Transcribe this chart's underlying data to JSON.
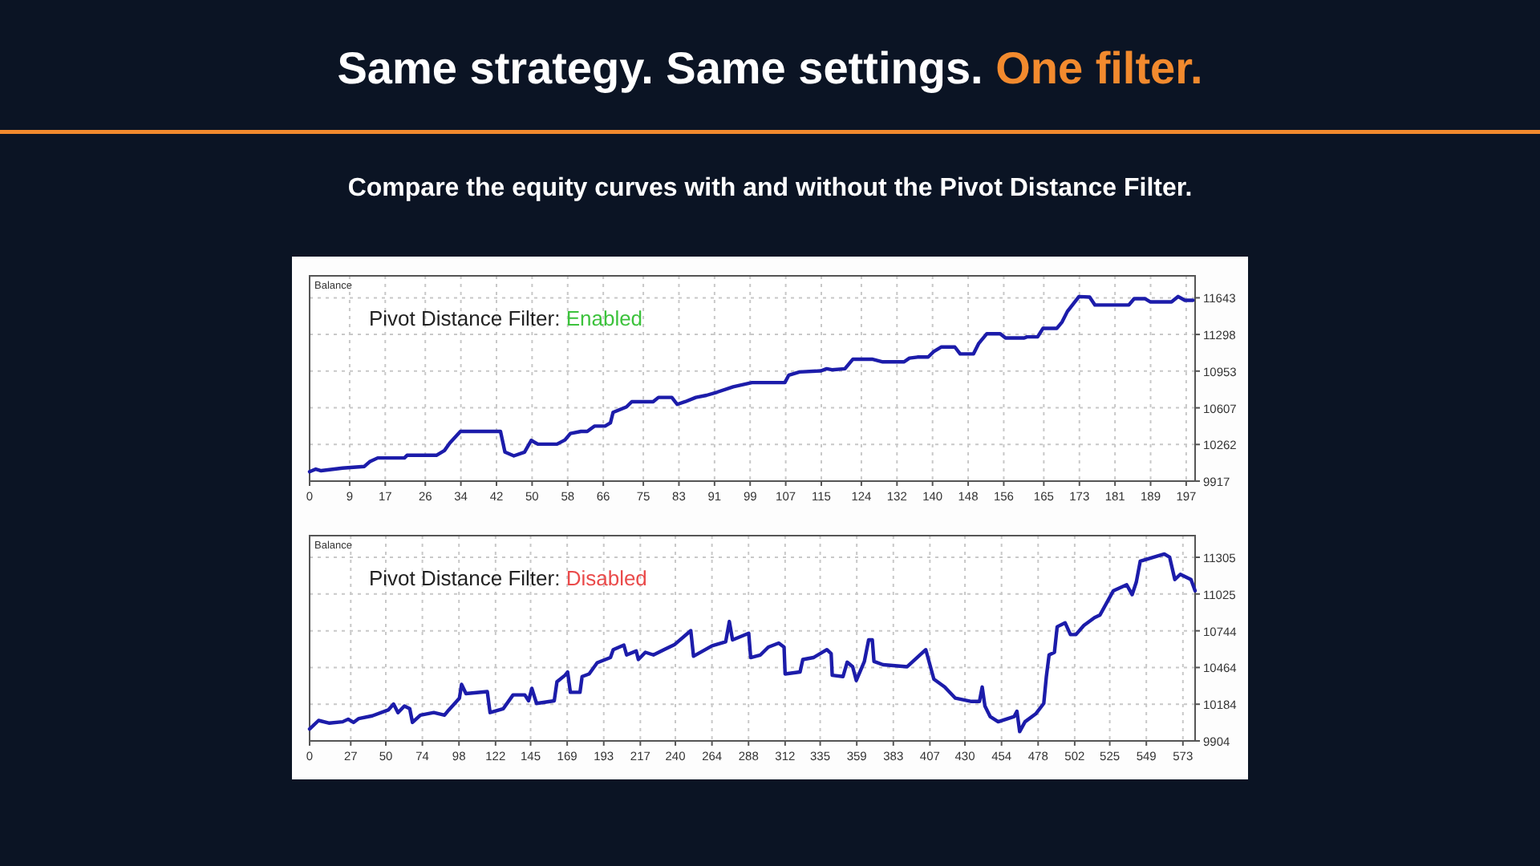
{
  "chart_data": [
    {
      "type": "line",
      "title": "Same strategy. Same settings. One filter.",
      "subtitle": "Compare the equity curves with and without the Pivot Distance Filter.",
      "ylabel": "Balance",
      "annotations": [
        "Pivot Distance Filter: Enabled"
      ],
      "xlim": [
        0,
        199
      ],
      "xticks": [
        0,
        9,
        17,
        26,
        34,
        42,
        50,
        58,
        66,
        75,
        83,
        91,
        99,
        107,
        115,
        124,
        132,
        140,
        148,
        156,
        165,
        173,
        181,
        189,
        197
      ],
      "ylim": [
        9917,
        11850
      ],
      "yticks": [
        9917,
        10262,
        10607,
        10953,
        11298,
        11643
      ],
      "grid": true,
      "line_style": "solid",
      "series": [
        {
          "color": "#1c1caa",
          "x": [
            0,
            1.4,
            2.6,
            7.4,
            12.3,
            13.5,
            15.3,
            21.3,
            21.9,
            28.5,
            30.3,
            31.5,
            33.9,
            42.9,
            43.9,
            45.9,
            48.3,
            49.8,
            51.3,
            55.6,
            57.4,
            58.6,
            61,
            62.4,
            64,
            66.4,
            67.6,
            68.2,
            71.2,
            72.4,
            77.2,
            78.4,
            81.4,
            82.6,
            84.4,
            86.8,
            89.2,
            91.6,
            95.2,
            99.4,
            106.8,
            107.7,
            110.1,
            114.9,
            116.2,
            117.4,
            120.3,
            122.1,
            126.4,
            128.8,
            133.6,
            134.8,
            136.6,
            139,
            140.2,
            142,
            145,
            146.2,
            149.2,
            150.4,
            152.2,
            155.2,
            156.4,
            160.6,
            161.2,
            163.6,
            164.8,
            167.9,
            169.1,
            170.3,
            172.9,
            175.3,
            176.5,
            184.1,
            185.3,
            187.7,
            188.9,
            193.7,
            195.2,
            196.7,
            198.5
          ],
          "values": [
            10005,
            10030,
            10015,
            10040,
            10055,
            10100,
            10135,
            10135,
            10160,
            10160,
            10205,
            10275,
            10385,
            10385,
            10190,
            10155,
            10190,
            10300,
            10265,
            10265,
            10305,
            10365,
            10385,
            10385,
            10435,
            10435,
            10465,
            10565,
            10615,
            10665,
            10665,
            10705,
            10705,
            10640,
            10665,
            10705,
            10725,
            10755,
            10805,
            10845,
            10845,
            10915,
            10945,
            10955,
            10975,
            10965,
            10975,
            11065,
            11065,
            11040,
            11040,
            11075,
            11085,
            11085,
            11135,
            11180,
            11180,
            11115,
            11115,
            11215,
            11305,
            11305,
            11265,
            11265,
            11275,
            11275,
            11355,
            11355,
            11415,
            11515,
            11655,
            11650,
            11575,
            11575,
            11635,
            11635,
            11605,
            11605,
            11655,
            11620,
            11620
          ]
        }
      ]
    },
    {
      "type": "line",
      "ylabel": "Balance",
      "annotations": [
        "Pivot Distance Filter: Disabled"
      ],
      "xlim": [
        0,
        581
      ],
      "xticks": [
        0,
        27,
        50,
        74,
        98,
        122,
        145,
        169,
        193,
        217,
        240,
        264,
        288,
        312,
        335,
        359,
        383,
        407,
        430,
        454,
        478,
        502,
        525,
        549,
        573
      ],
      "ylim": [
        9904,
        11470
      ],
      "yticks": [
        9904,
        10184,
        10464,
        10744,
        11025,
        11305
      ],
      "grid": true,
      "line_style": "solid",
      "series": [
        {
          "color": "#1c1caa",
          "x": [
            0,
            5.9,
            13,
            21.7,
            25.3,
            28.8,
            32.3,
            41.1,
            51.6,
            55.1,
            58,
            62.2,
            65.7,
            67.5,
            72.7,
            81.5,
            88.5,
            91.3,
            98.3,
            99.7,
            102.6,
            116.6,
            118.4,
            127.1,
            133.5,
            141.2,
            143.7,
            145.8,
            148.9,
            160.5,
            162.3,
            167.6,
            169.3,
            171.1,
            177.4,
            178.8,
            183.4,
            188.7,
            197.4,
            199.2,
            206.2,
            208,
            214.3,
            215.7,
            220.3,
            225.6,
            232.5,
            239.6,
            250.1,
            251.9,
            264.1,
            273,
            275.4,
            277.5,
            288.1,
            289.4,
            295.8,
            301,
            307.8,
            311.3,
            312,
            321.8,
            323.6,
            330.6,
            339.4,
            342.2,
            342.9,
            350,
            352.7,
            356.3,
            358.7,
            364,
            366.8,
            369.2,
            370.3,
            376.3,
            392.1,
            404.3,
            409.6,
            416.7,
            423.7,
            434.3,
            439.5,
            441.3,
            443.1,
            446.5,
            451.8,
            462.3,
            464.1,
            465.9,
            469.4,
            476.4,
            481.7,
            483.4,
            485.2,
            488.7,
            490.5,
            495.7,
            499.2,
            502.8,
            508,
            515,
            518.6,
            527.4,
            536.1,
            539.7,
            542.4,
            545,
            560.8,
            564.3,
            567.7,
            571.3,
            578.3,
            581
          ],
          "values": [
            9995,
            10060,
            10040,
            10050,
            10070,
            10045,
            10075,
            10095,
            10140,
            10185,
            10120,
            10170,
            10150,
            10045,
            10100,
            10120,
            10100,
            10140,
            10230,
            10335,
            10265,
            10280,
            10120,
            10150,
            10255,
            10255,
            10210,
            10305,
            10190,
            10210,
            10355,
            10405,
            10430,
            10275,
            10275,
            10395,
            10415,
            10500,
            10540,
            10600,
            10635,
            10560,
            10590,
            10525,
            10580,
            10560,
            10600,
            10640,
            10745,
            10550,
            10630,
            10660,
            10815,
            10675,
            10725,
            10540,
            10560,
            10620,
            10650,
            10620,
            10415,
            10430,
            10525,
            10540,
            10600,
            10570,
            10405,
            10395,
            10505,
            10470,
            10365,
            10510,
            10675,
            10675,
            10510,
            10485,
            10470,
            10600,
            10375,
            10315,
            10230,
            10205,
            10205,
            10315,
            10170,
            10090,
            10050,
            10090,
            10130,
            9975,
            10050,
            10110,
            10190,
            10395,
            10560,
            10580,
            10775,
            10805,
            10715,
            10715,
            10785,
            10845,
            10865,
            11050,
            11095,
            11020,
            11115,
            11275,
            11330,
            11305,
            11135,
            11175,
            11135,
            11050
          ]
        }
      ]
    }
  ]
}
